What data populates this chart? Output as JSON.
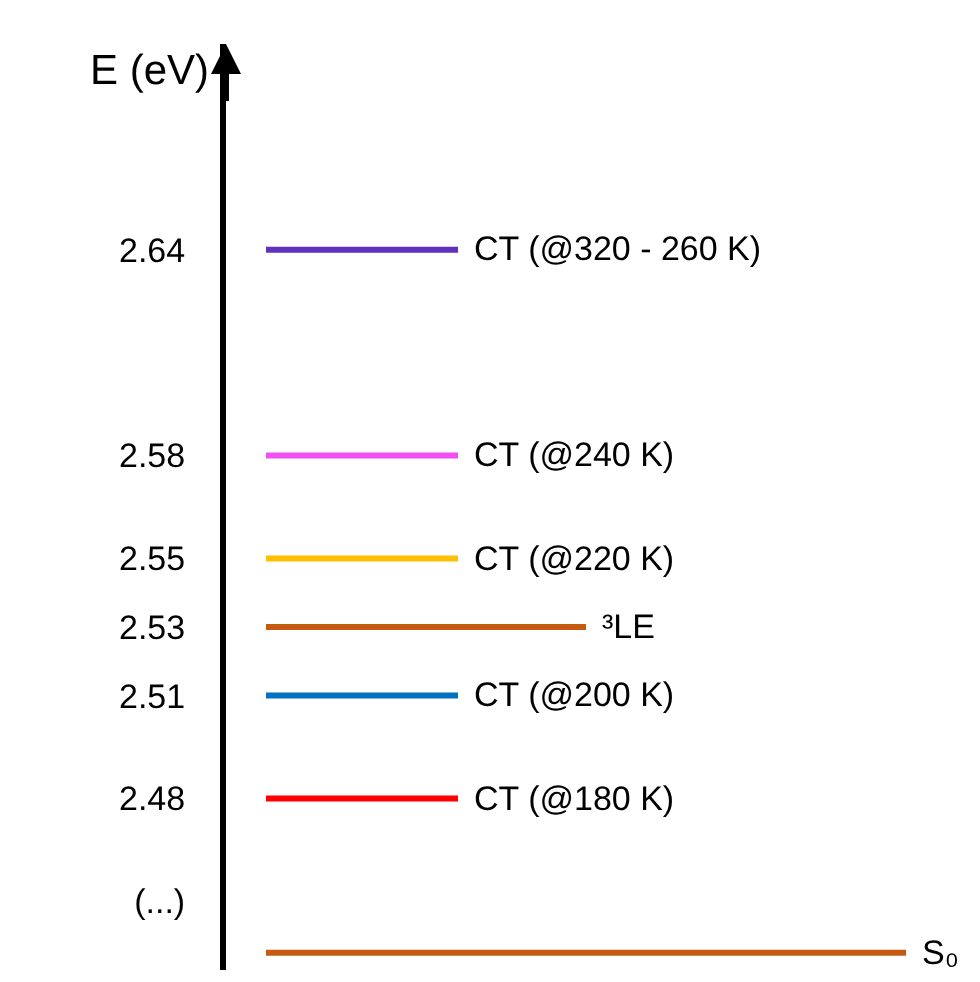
{
  "chart_data": {
    "type": "line",
    "ylabel": "E (eV)",
    "ylim": [
      2.43,
      2.7
    ],
    "yticks": [
      {
        "value": 2.45,
        "label": "(...)"
      },
      2.48,
      2.51,
      2.53,
      2.55,
      2.58,
      2.64
    ],
    "categories": [
      null,
      null,
      null,
      null,
      null,
      null,
      null,
      null,
      null,
      null,
      null
    ],
    "tick_labels": "y",
    "legend": false,
    "marker": "none",
    "line_style": "solid",
    "series": [
      {
        "name": "CT (@320 - 260 K)",
        "color": "#6030c0",
        "values": [
          2.64,
          2.64,
          2.64,
          2.64,
          null,
          null,
          null,
          null,
          null,
          null,
          null
        ]
      },
      {
        "name": "CT (@240 K)",
        "color": "#f050f0",
        "values": [
          2.58,
          2.58,
          2.58,
          2.58,
          null,
          null,
          null,
          null,
          null,
          null,
          null
        ]
      },
      {
        "name": "CT (@220 K)",
        "color": "#ffc000",
        "values": [
          2.55,
          2.55,
          2.55,
          2.55,
          null,
          null,
          null,
          null,
          null,
          null,
          null
        ]
      },
      {
        "name": "³LE",
        "color": "#c55a11",
        "values": [
          2.53,
          2.53,
          2.53,
          2.53,
          2.53,
          2.53,
          null,
          null,
          null,
          null,
          null
        ]
      },
      {
        "name": "CT (@200 K)",
        "color": "#0070c0",
        "values": [
          2.51,
          2.51,
          2.51,
          2.51,
          null,
          null,
          null,
          null,
          null,
          null,
          null
        ]
      },
      {
        "name": "CT (@180 K)",
        "color": "#ff0000",
        "values": [
          2.48,
          2.48,
          2.48,
          2.48,
          null,
          null,
          null,
          null,
          null,
          null,
          null
        ]
      },
      {
        "name": "S₀",
        "color": "#c55a11",
        "values": [
          2.435,
          2.435,
          2.435,
          2.435,
          2.435,
          2.435,
          2.435,
          2.435,
          2.435,
          2.435,
          2.435
        ]
      }
    ]
  }
}
